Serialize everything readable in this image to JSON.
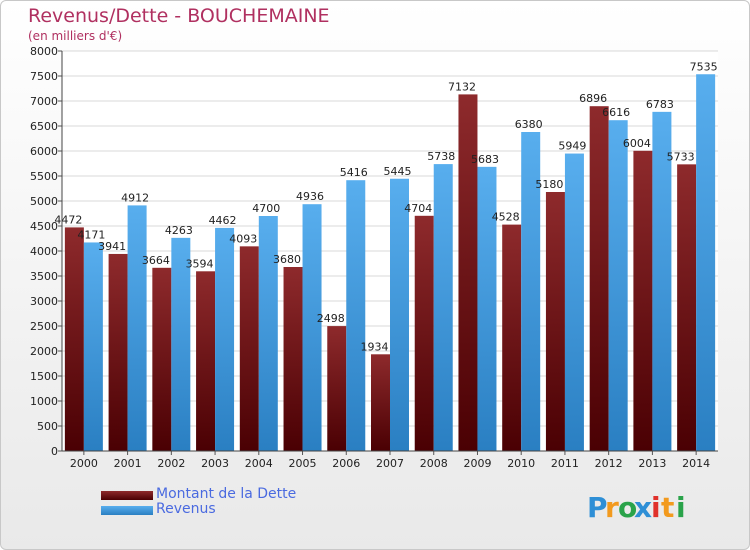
{
  "chart_data": {
    "type": "bar",
    "title": "Revenus/Dette - BOUCHEMAINE",
    "subtitle": "(en milliers d'€)",
    "categories": [
      "2000",
      "2001",
      "2002",
      "2003",
      "2004",
      "2005",
      "2006",
      "2007",
      "2008",
      "2009",
      "2010",
      "2011",
      "2012",
      "2013",
      "2014"
    ],
    "series": [
      {
        "name": "Montant de la Dette",
        "color": "#7a1416",
        "values": [
          4472,
          3941,
          3664,
          3594,
          4093,
          3680,
          2498,
          1934,
          4704,
          7132,
          4528,
          5180,
          6896,
          6004,
          5733
        ]
      },
      {
        "name": "Revenus",
        "color": "#3c9ae0",
        "values": [
          4171,
          4912,
          4263,
          4462,
          4700,
          4936,
          5416,
          5445,
          5738,
          5683,
          6380,
          5949,
          6616,
          6783,
          7535
        ]
      }
    ],
    "ylim": [
      0,
      8000
    ],
    "yticks": [
      0,
      500,
      1000,
      1500,
      2000,
      2500,
      3000,
      3500,
      4000,
      4500,
      5000,
      5500,
      6000,
      6500,
      7000,
      7500,
      8000
    ],
    "grid": true,
    "legend_position": "bottom-left"
  },
  "logo": {
    "text": "Proxiti",
    "letters": [
      "P",
      "r",
      "o",
      "x",
      "i",
      "t",
      "i"
    ],
    "colors": [
      "#2e8fd6",
      "#f29a1e",
      "#2aa34a",
      "#2e8fd6",
      "#e0312b",
      "#f29a1e",
      "#2aa34a"
    ]
  }
}
